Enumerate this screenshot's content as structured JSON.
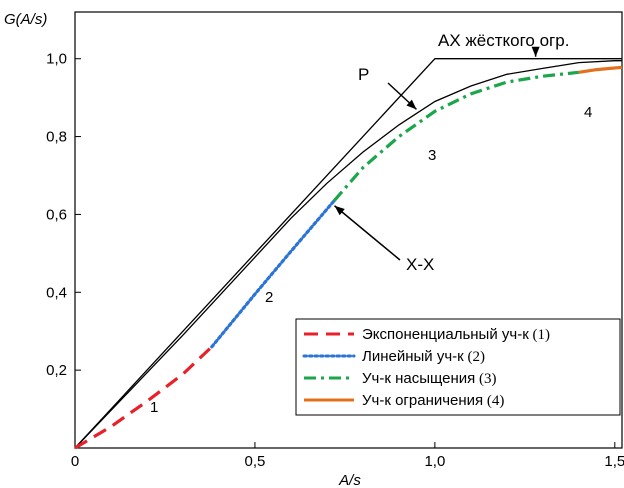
{
  "chart_data": {
    "type": "line",
    "xlabel": "A/s",
    "ylabel": "G(A/s)",
    "xlim": [
      0,
      1.52
    ],
    "ylim": [
      0,
      1.12
    ],
    "x_ticks": [
      {
        "value": 0,
        "label": "0"
      },
      {
        "value": 0.5,
        "label": "0,5"
      },
      {
        "value": 1.0,
        "label": "1,0"
      },
      {
        "value": 1.5,
        "label": "1,5"
      }
    ],
    "y_ticks": [
      {
        "value": 0.2,
        "label": "0,2"
      },
      {
        "value": 0.4,
        "label": "0,4"
      },
      {
        "value": 0.6,
        "label": "0,6"
      },
      {
        "value": 0.8,
        "label": "0,8"
      },
      {
        "value": 1.0,
        "label": "1,0"
      }
    ],
    "grid": false,
    "legend_position": "bottom-right",
    "reference_curves": [
      {
        "id": "hard",
        "color": "#000000",
        "x": [
          0,
          1.0,
          1.52
        ],
        "y": [
          0,
          1.0,
          1.0
        ]
      },
      {
        "id": "p",
        "color": "#000000",
        "x": [
          0,
          0.3,
          0.6,
          0.7,
          0.8,
          0.9,
          1.0,
          1.1,
          1.2,
          1.3,
          1.4,
          1.5,
          1.52
        ],
        "y": [
          0,
          0.29,
          0.59,
          0.68,
          0.76,
          0.83,
          0.89,
          0.93,
          0.96,
          0.975,
          0.99,
          0.995,
          0.995
        ]
      }
    ],
    "series": [
      {
        "name": "Экспоненциальный уч-к",
        "num": "(1)",
        "color": "#e8202a",
        "style": "dashed",
        "x": [
          0,
          0.1,
          0.2,
          0.3,
          0.38
        ],
        "y": [
          0,
          0.055,
          0.12,
          0.19,
          0.26
        ]
      },
      {
        "name": "Линейный уч-к",
        "num": "(2)",
        "color": "#2a74d6",
        "style": "dotted",
        "x": [
          0.38,
          0.5,
          0.6,
          0.72
        ],
        "y": [
          0.26,
          0.395,
          0.505,
          0.635
        ]
      },
      {
        "name": "Уч-к  насыщения",
        "num": "(3)",
        "color": "#1aa64a",
        "style": "dashdot",
        "x": [
          0.72,
          0.8,
          0.9,
          1.0,
          1.1,
          1.2,
          1.3,
          1.4
        ],
        "y": [
          0.635,
          0.72,
          0.8,
          0.865,
          0.91,
          0.94,
          0.955,
          0.965
        ]
      },
      {
        "name": "Уч-к ограничения",
        "num": "(4)",
        "color": "#e2701e",
        "style": "solid",
        "x": [
          1.4,
          1.45,
          1.52
        ],
        "y": [
          0.965,
          0.972,
          0.978
        ]
      }
    ],
    "annotations": [
      {
        "id": "hard-label",
        "text": "АХ жёсткого огр.",
        "arrow_to_x": 1.28,
        "arrow_to_y": 1.0
      },
      {
        "id": "p-label",
        "text": "P",
        "arrow_to_x": 0.96,
        "arrow_to_y": 0.875
      },
      {
        "id": "xx-label",
        "text": "X-X",
        "arrow_to_x": 0.71,
        "arrow_to_y": 0.63
      },
      {
        "id": "num-1",
        "text": "1"
      },
      {
        "id": "num-2",
        "text": "2"
      },
      {
        "id": "num-3",
        "text": "3"
      },
      {
        "id": "num-4",
        "text": "4"
      }
    ]
  }
}
